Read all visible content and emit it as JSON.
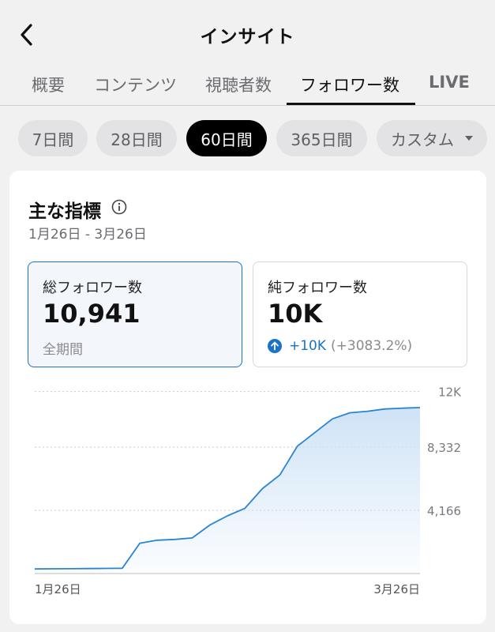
{
  "header": {
    "title": "インサイト",
    "back_icon": "chevron-left-icon"
  },
  "tabs": [
    {
      "label": "概要",
      "active": false
    },
    {
      "label": "コンテンツ",
      "active": false
    },
    {
      "label": "視聴者数",
      "active": false
    },
    {
      "label": "フォロワー数",
      "active": true
    },
    {
      "label": "LIVE",
      "active": false
    }
  ],
  "ranges": [
    {
      "label": "7日間",
      "active": false
    },
    {
      "label": "28日間",
      "active": false
    },
    {
      "label": "60日間",
      "active": true
    },
    {
      "label": "365日間",
      "active": false
    },
    {
      "label": "カスタム",
      "active": false,
      "dropdown_icon": "caret-down-icon"
    }
  ],
  "card": {
    "title": "主な指標",
    "info_icon": "info-icon",
    "date_range": "1月26日 - 3月26日"
  },
  "metrics": {
    "total": {
      "label": "総フォロワー数",
      "value": "10,941",
      "sub": "全期間"
    },
    "net": {
      "label": "純フォロワー数",
      "value": "10K",
      "change_icon": "arrow-up-circle-icon",
      "change": "+10K",
      "change_pct": "(+3083.2%)"
    }
  },
  "colors": {
    "accent": "#1a73c9",
    "line": "#2a84d2",
    "fill_top": "#cfe3f7"
  },
  "chart_data": {
    "type": "area",
    "x_labels": [
      "1月26日",
      "3月26日"
    ],
    "y_ticks": [
      {
        "value": 12000,
        "label": "12K"
      },
      {
        "value": 8332,
        "label": "8,332"
      },
      {
        "value": 4166,
        "label": "4,166"
      }
    ],
    "ylim": [
      0,
      12500
    ],
    "grid": true,
    "series": [
      {
        "values": [
          300,
          310,
          320,
          330,
          340,
          350,
          2000,
          2200,
          2250,
          2350,
          3200,
          3800,
          4300,
          5600,
          6500,
          8400,
          9300,
          10200,
          10600,
          10700,
          10850,
          10900,
          10941
        ]
      }
    ]
  }
}
